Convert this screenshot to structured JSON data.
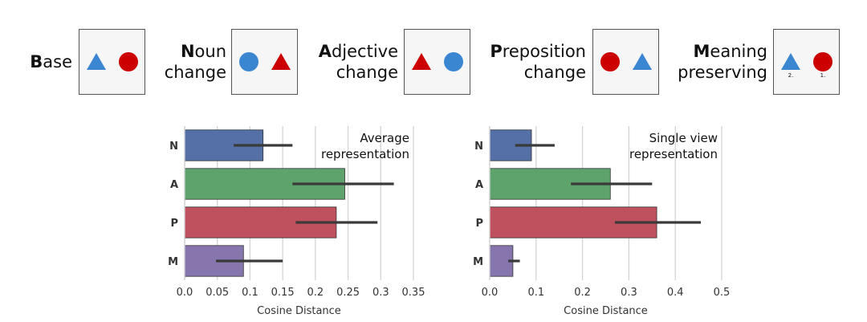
{
  "conditions": [
    {
      "id": "base",
      "initial": "B",
      "lines": [
        "ase"
      ],
      "shapes": [
        "triangle-blue",
        "circle-red"
      ],
      "order_marks": []
    },
    {
      "id": "noun",
      "initial": "N",
      "lines": [
        "oun",
        "change"
      ],
      "shapes": [
        "circle-blue",
        "triangle-red"
      ],
      "order_marks": []
    },
    {
      "id": "adjective",
      "initial": "A",
      "lines": [
        "djective",
        "change"
      ],
      "shapes": [
        "triangle-red",
        "circle-blue"
      ],
      "order_marks": []
    },
    {
      "id": "preposition",
      "initial": "P",
      "lines": [
        "reposition",
        "change"
      ],
      "shapes": [
        "circle-red",
        "triangle-blue"
      ],
      "order_marks": []
    },
    {
      "id": "meaning",
      "initial": "M",
      "lines": [
        "eaning",
        "preserving"
      ],
      "shapes": [
        "triangle-blue",
        "circle-red"
      ],
      "order_marks": [
        "2.",
        "1."
      ]
    }
  ],
  "colors": {
    "shape_blue": "#3a86d1",
    "shape_red": "#cc0000",
    "bar_N": "#5470a6",
    "bar_A": "#5ea36b",
    "bar_P": "#bf505d",
    "bar_M": "#8776ae",
    "grid": "#d4d4d4",
    "error": "#3a3a3a"
  },
  "chart_data": [
    {
      "type": "bar",
      "orientation": "horizontal",
      "annotation": [
        "Average",
        "representation"
      ],
      "categories": [
        "N",
        "A",
        "P",
        "M"
      ],
      "values": [
        0.12,
        0.245,
        0.232,
        0.09
      ],
      "error_low": [
        0.075,
        0.165,
        0.17,
        0.048
      ],
      "error_high": [
        0.165,
        0.32,
        0.295,
        0.15
      ],
      "xlim": [
        0,
        0.35
      ],
      "xticks": [
        0,
        0.05,
        0.1,
        0.15,
        0.2,
        0.25,
        0.3,
        0.35
      ],
      "xtick_labels": [
        "0.0",
        "0.05",
        "0.1",
        "0.15",
        "0.2",
        "0.25",
        "0.3",
        "0.35"
      ],
      "xlabel": "Cosine Distance",
      "grid": true
    },
    {
      "type": "bar",
      "orientation": "horizontal",
      "annotation": [
        "Single view",
        "representation"
      ],
      "categories": [
        "N",
        "A",
        "P",
        "M"
      ],
      "values": [
        0.09,
        0.26,
        0.36,
        0.05
      ],
      "error_low": [
        0.055,
        0.175,
        0.27,
        0.04
      ],
      "error_high": [
        0.14,
        0.35,
        0.455,
        0.065
      ],
      "xlim": [
        0,
        0.5
      ],
      "xticks": [
        0,
        0.1,
        0.2,
        0.3,
        0.4,
        0.5
      ],
      "xtick_labels": [
        "0.0",
        "0.1",
        "0.2",
        "0.3",
        "0.4",
        "0.5"
      ],
      "xlabel": "Cosine Distance",
      "grid": true
    }
  ]
}
